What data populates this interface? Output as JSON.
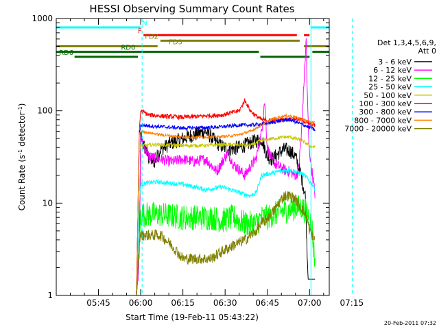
{
  "chart_data": {
    "type": "line",
    "title": "HESSI Observing Summary Count Rates",
    "xlabel": "Start Time (19-Feb-11 05:43:22)",
    "ylabel_main": "Count Rate (s",
    "ylabel_sup1": "-1",
    "ylabel_mid": " detector",
    "ylabel_sup2": "-1",
    "ylabel_end": ")",
    "yscale": "log",
    "ylim": [
      1,
      1000
    ],
    "xlim_minutes": [
      -15,
      82
    ],
    "x_ticks": [
      {
        "m": 0,
        "label": "05:45"
      },
      {
        "m": 15,
        "label": "06:00"
      },
      {
        "m": 30,
        "label": "06:15"
      },
      {
        "m": 45,
        "label": "06:30"
      },
      {
        "m": 60,
        "label": "06:45"
      },
      {
        "m": 75,
        "label": "07:00"
      },
      {
        "m": 90,
        "label": "07:15"
      }
    ],
    "y_ticks": [
      {
        "v": 1,
        "label": "1"
      },
      {
        "v": 10,
        "label": "10"
      },
      {
        "v": 100,
        "label": "100"
      },
      {
        "v": 1000,
        "label": "1000"
      }
    ],
    "legend_header": [
      "Det 1,3,4,5,6,9,",
      "Att 0"
    ],
    "legend_position": "right",
    "series": [
      {
        "name": "3 - 6 keV",
        "color": "#000000",
        "noise": 0.16,
        "points": [
          [
            12,
            1
          ],
          [
            13.5,
            1
          ],
          [
            14.5,
            2.5
          ],
          [
            15,
            55
          ],
          [
            16,
            42
          ],
          [
            17,
            37
          ],
          [
            18,
            30
          ],
          [
            20,
            28
          ],
          [
            22,
            38
          ],
          [
            26,
            45
          ],
          [
            30,
            50
          ],
          [
            34,
            55
          ],
          [
            38,
            60
          ],
          [
            42,
            45
          ],
          [
            46,
            38
          ],
          [
            50,
            40
          ],
          [
            54,
            45
          ],
          [
            58,
            50
          ],
          [
            60,
            32
          ],
          [
            62,
            30
          ],
          [
            64,
            35
          ],
          [
            66,
            38
          ],
          [
            68,
            37
          ],
          [
            70,
            32
          ],
          [
            72,
            20
          ],
          [
            73.5,
            12
          ],
          [
            74.5,
            1.5
          ],
          [
            77,
            1.5
          ]
        ]
      },
      {
        "name": "6 - 12 keV",
        "color": "#ff00ff",
        "noise": 0.12,
        "points": [
          [
            12,
            1
          ],
          [
            13.5,
            1
          ],
          [
            14.5,
            2.5
          ],
          [
            15,
            52
          ],
          [
            16,
            42
          ],
          [
            18,
            32
          ],
          [
            22,
            30
          ],
          [
            26,
            28
          ],
          [
            30,
            30
          ],
          [
            34,
            28
          ],
          [
            38,
            30
          ],
          [
            40,
            26
          ],
          [
            42,
            22
          ],
          [
            44,
            28
          ],
          [
            46,
            35
          ],
          [
            48,
            26
          ],
          [
            50,
            23
          ],
          [
            52,
            20
          ],
          [
            54,
            25
          ],
          [
            56,
            30
          ],
          [
            58,
            60
          ],
          [
            59,
            130
          ],
          [
            60,
            40
          ],
          [
            62,
            28
          ],
          [
            64,
            25
          ],
          [
            66,
            23
          ],
          [
            68,
            22
          ],
          [
            70,
            20
          ],
          [
            71,
            22
          ],
          [
            72,
            50
          ],
          [
            73,
            200
          ],
          [
            73.8,
            600
          ],
          [
            74.2,
            150
          ],
          [
            74.8,
            40
          ],
          [
            77,
            12
          ]
        ]
      },
      {
        "name": "12 - 25 keV",
        "color": "#00ff00",
        "noise": 0.28,
        "points": [
          [
            12,
            1
          ],
          [
            13.5,
            1
          ],
          [
            14.5,
            3
          ],
          [
            15,
            7.5
          ],
          [
            22,
            7.5
          ],
          [
            30,
            7
          ],
          [
            40,
            7
          ],
          [
            44,
            6.5
          ],
          [
            48,
            7
          ],
          [
            52,
            6
          ],
          [
            56,
            6
          ],
          [
            58,
            7
          ],
          [
            60,
            7
          ],
          [
            64,
            8
          ],
          [
            68,
            8.5
          ],
          [
            70,
            9
          ],
          [
            72,
            9
          ],
          [
            74,
            8
          ],
          [
            75,
            7
          ],
          [
            76,
            5
          ],
          [
            77,
            2
          ]
        ]
      },
      {
        "name": "25 - 50 keV",
        "color": "#00ffff",
        "noise": 0.05,
        "points": [
          [
            12,
            1
          ],
          [
            13.5,
            1
          ],
          [
            14.5,
            10
          ],
          [
            15,
            16
          ],
          [
            20,
            17
          ],
          [
            30,
            16
          ],
          [
            38,
            14
          ],
          [
            44,
            15
          ],
          [
            50,
            13
          ],
          [
            54,
            12
          ],
          [
            56,
            13
          ],
          [
            58,
            20
          ],
          [
            64,
            22
          ],
          [
            68,
            23
          ],
          [
            72,
            21
          ],
          [
            74,
            19
          ],
          [
            75,
            17
          ],
          [
            76,
            16
          ],
          [
            77,
            14
          ]
        ]
      },
      {
        "name": "50 - 100 keV",
        "color": "#c8c800",
        "noise": 0.04,
        "points": [
          [
            12,
            1
          ],
          [
            13.5,
            1
          ],
          [
            14.5,
            35
          ],
          [
            15,
            42
          ],
          [
            20,
            43
          ],
          [
            30,
            42
          ],
          [
            38,
            42
          ],
          [
            44,
            43
          ],
          [
            50,
            43
          ],
          [
            54,
            42
          ],
          [
            58,
            48
          ],
          [
            62,
            50
          ],
          [
            66,
            52
          ],
          [
            68,
            52
          ],
          [
            72,
            48
          ],
          [
            74,
            44
          ],
          [
            75,
            42
          ],
          [
            77,
            40
          ]
        ]
      },
      {
        "name": "100 - 300 keV",
        "color": "#ff0000",
        "noise": 0.05,
        "points": [
          [
            12,
            1
          ],
          [
            13.5,
            1
          ],
          [
            14.5,
            60
          ],
          [
            15,
            100
          ],
          [
            18,
            90
          ],
          [
            22,
            88
          ],
          [
            30,
            85
          ],
          [
            38,
            88
          ],
          [
            44,
            90
          ],
          [
            50,
            100
          ],
          [
            52,
            130
          ],
          [
            54,
            100
          ],
          [
            56,
            88
          ],
          [
            58,
            80
          ],
          [
            62,
            78
          ],
          [
            66,
            80
          ],
          [
            70,
            82
          ],
          [
            72,
            80
          ],
          [
            74,
            75
          ],
          [
            75,
            72
          ],
          [
            77,
            70
          ]
        ]
      },
      {
        "name": "300 - 800 keV",
        "color": "#0000ff",
        "noise": 0.04,
        "points": [
          [
            12,
            1
          ],
          [
            13.5,
            1
          ],
          [
            14.5,
            55
          ],
          [
            15,
            70
          ],
          [
            20,
            68
          ],
          [
            30,
            65
          ],
          [
            40,
            66
          ],
          [
            46,
            68
          ],
          [
            50,
            70
          ],
          [
            54,
            70
          ],
          [
            58,
            72
          ],
          [
            62,
            75
          ],
          [
            66,
            80
          ],
          [
            68,
            80
          ],
          [
            72,
            72
          ],
          [
            74,
            68
          ],
          [
            75,
            66
          ],
          [
            77,
            62
          ]
        ]
      },
      {
        "name": "800 - 7000 keV",
        "color": "#ff8000",
        "noise": 0.03,
        "points": [
          [
            12,
            1
          ],
          [
            13.5,
            1
          ],
          [
            14.5,
            55
          ],
          [
            15,
            60
          ],
          [
            22,
            55
          ],
          [
            30,
            52
          ],
          [
            40,
            52
          ],
          [
            46,
            53
          ],
          [
            50,
            55
          ],
          [
            54,
            60
          ],
          [
            58,
            70
          ],
          [
            62,
            82
          ],
          [
            66,
            88
          ],
          [
            68,
            88
          ],
          [
            72,
            82
          ],
          [
            74,
            78
          ],
          [
            75,
            76
          ],
          [
            77,
            74
          ]
        ]
      },
      {
        "name": "7000 - 20000 keV",
        "color": "#808000",
        "noise": 0.12,
        "points": [
          [
            12,
            1
          ],
          [
            13.5,
            1
          ],
          [
            14.5,
            4
          ],
          [
            15,
            4.5
          ],
          [
            22,
            4.5
          ],
          [
            26,
            3.5
          ],
          [
            30,
            2.5
          ],
          [
            40,
            2.5
          ],
          [
            44,
            3
          ],
          [
            48,
            3.5
          ],
          [
            52,
            4
          ],
          [
            56,
            5
          ],
          [
            58,
            6
          ],
          [
            62,
            8
          ],
          [
            64,
            10
          ],
          [
            66,
            12
          ],
          [
            68,
            12
          ],
          [
            70,
            11
          ],
          [
            72,
            9
          ],
          [
            74,
            7
          ],
          [
            75,
            5
          ],
          [
            76,
            4.5
          ],
          [
            77,
            4
          ]
        ]
      }
    ],
    "state_bars": [
      {
        "label": "N",
        "color": "#00ffff",
        "y": 800,
        "label_at": 15.5,
        "segments": [
          [
            -15,
            15
          ],
          [
            75.5,
            82
          ]
        ]
      },
      {
        "label": "F",
        "color": "#ff0000",
        "y": 660,
        "label_at": 14,
        "segments": [
          [
            16,
            70.5
          ],
          [
            73,
            75
          ]
        ]
      },
      {
        "label": "FD2",
        "color": "#808000",
        "y": 575,
        "label_at": 16.5,
        "segments": [
          [
            22,
            71.5
          ]
        ]
      },
      {
        "label": "FD3",
        "color": "#808000",
        "y": 500,
        "label_at": 25,
        "segments": [
          [
            -15,
            21
          ],
          [
            73,
            82
          ]
        ]
      },
      {
        "label": "RD0",
        "color": "#006400",
        "y": 435,
        "label_at": 8,
        "segments": [
          [
            -15,
            57
          ],
          [
            76,
            82
          ]
        ]
      },
      {
        "label": "RD6",
        "color": "#006400",
        "y": 385,
        "label_at": -14,
        "segments": [
          [
            -8.5,
            14
          ],
          [
            57.5,
            75
          ]
        ]
      }
    ],
    "vlines": [
      {
        "m": 15.5,
        "color": "#00ffff",
        "style": "dashed"
      },
      {
        "m": 75.5,
        "color": "#00ffff",
        "style": "solid"
      },
      {
        "m": 90.2,
        "color": "#00ffff",
        "style": "dashed"
      }
    ],
    "timestamp": "20-Feb-2011 07:32"
  }
}
